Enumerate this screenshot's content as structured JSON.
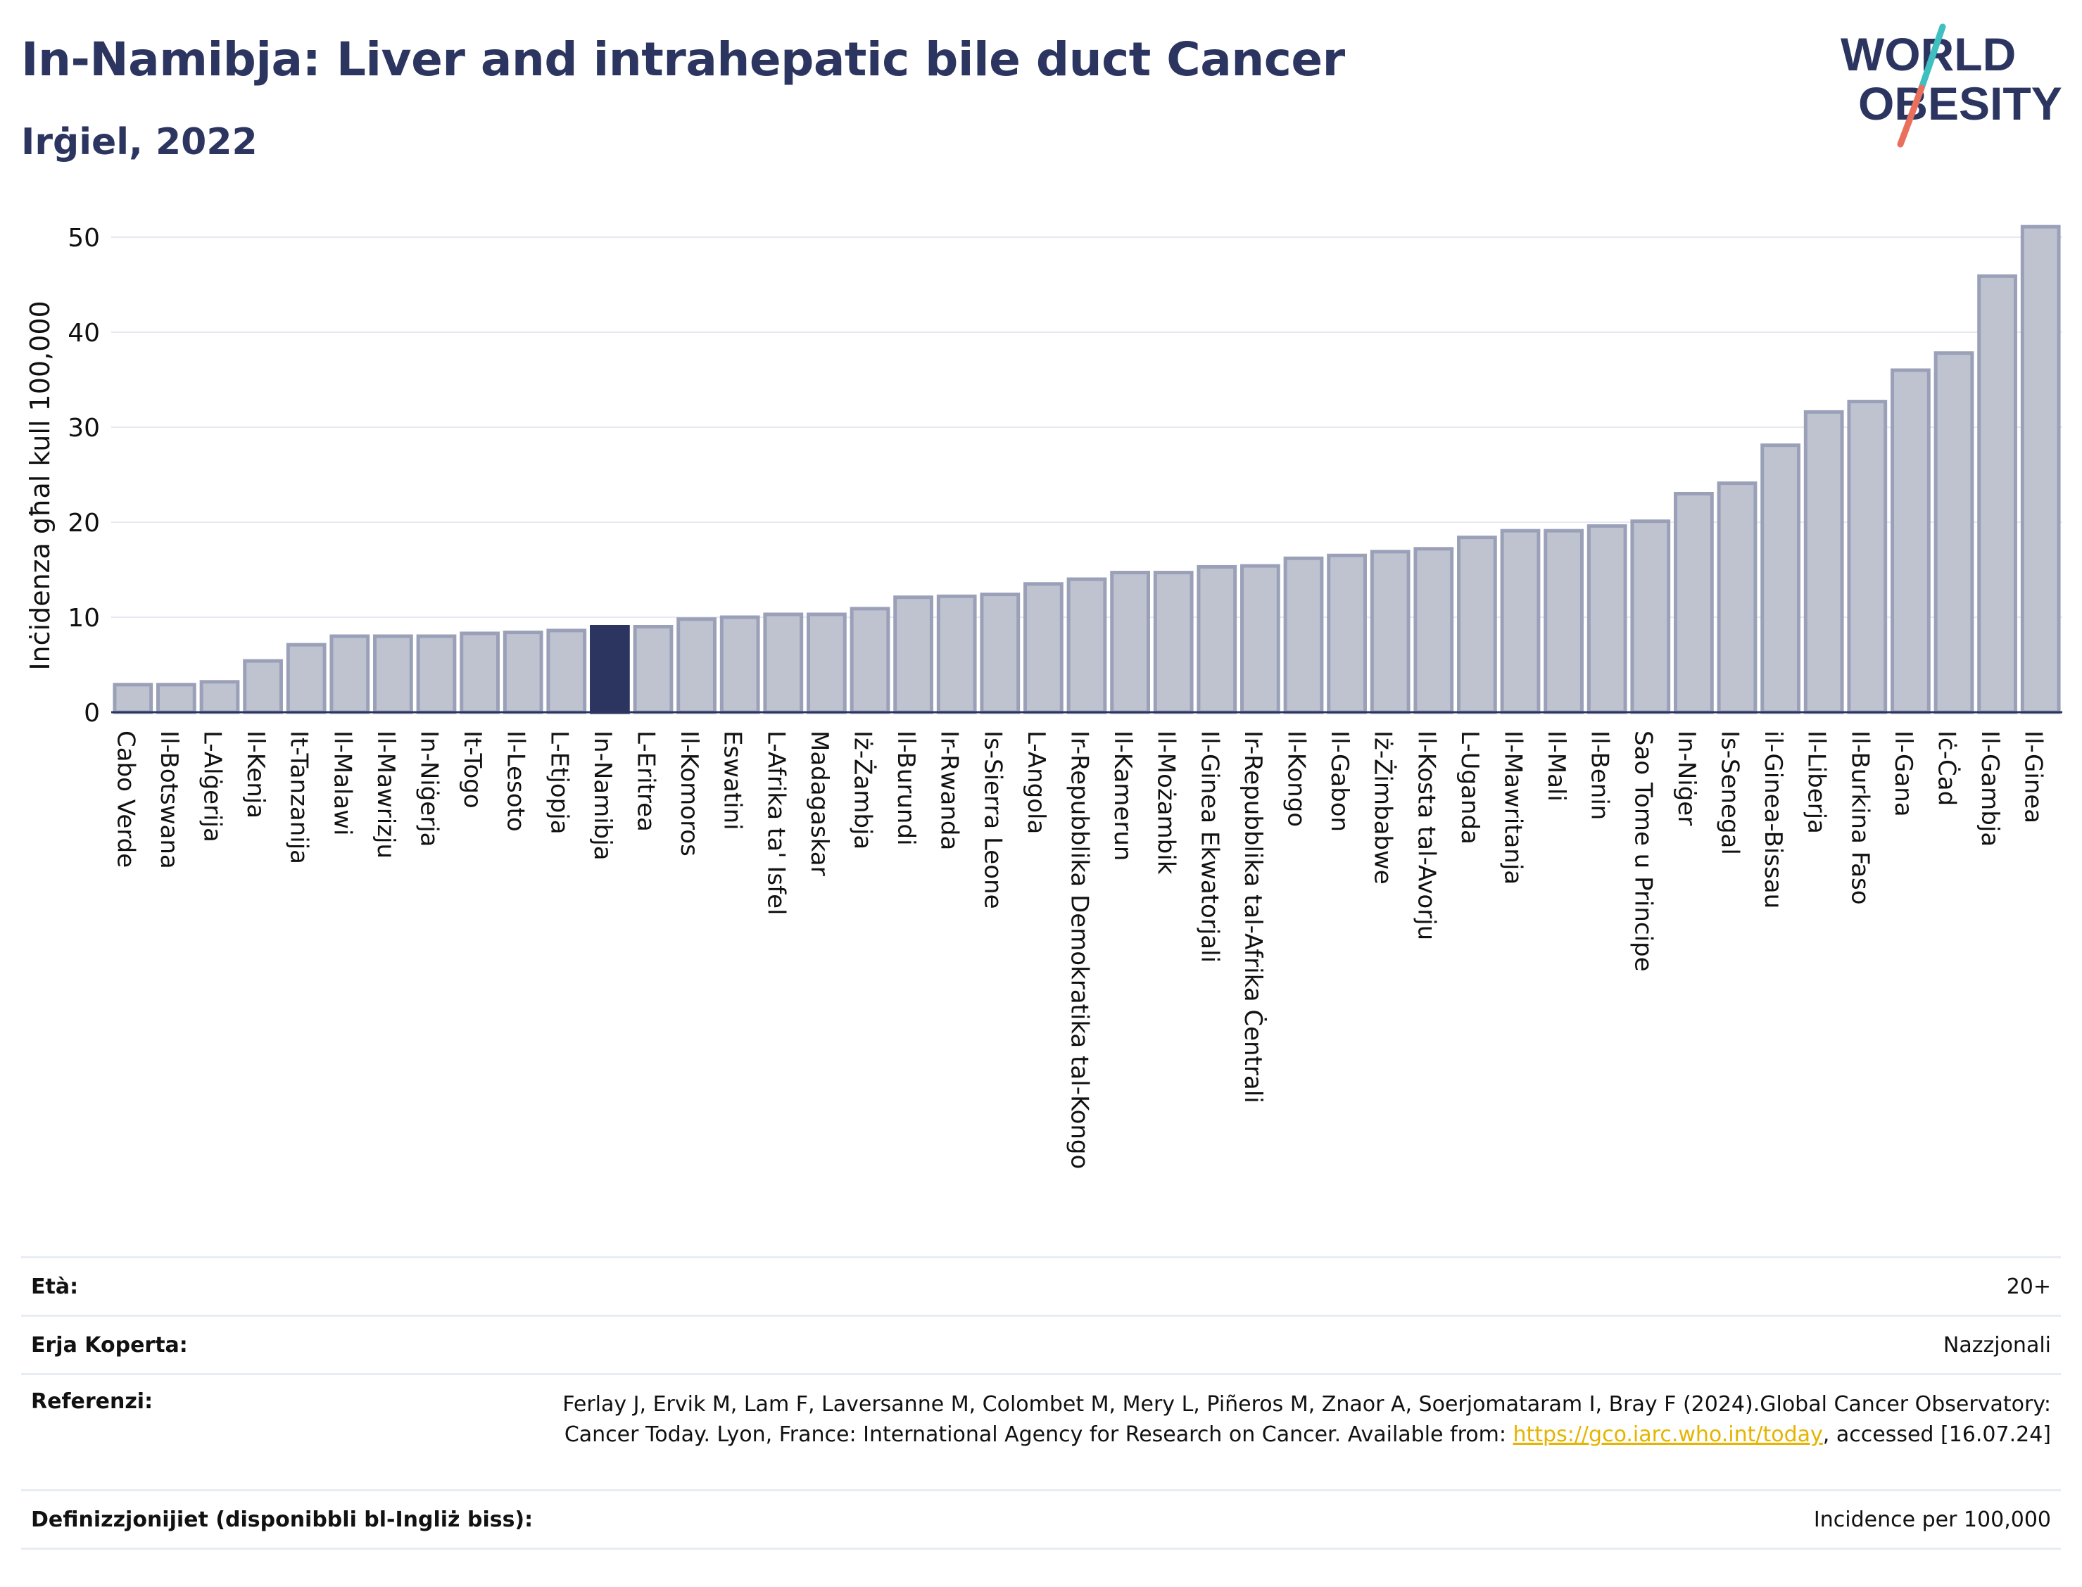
{
  "header": {
    "title": "In-Namibja: Liver and intrahepatic bile duct Cancer",
    "subtitle": "Irġiel, 2022"
  },
  "logo": {
    "line1": "WORLD",
    "line2": "OBESITY"
  },
  "colors": {
    "bar": "#bfc3d0",
    "bar_border": "#9aa0b8",
    "highlight": "#2b3560",
    "text_dark": "#2b3560",
    "logo_teal": "#3fbfbf",
    "logo_coral": "#e8705c",
    "link": "#e5b400"
  },
  "chart_data": {
    "type": "bar",
    "title": "In-Namibja: Liver and intrahepatic bile duct Cancer",
    "subtitle": "Irġiel, 2022",
    "xlabel": "",
    "ylabel": "Inċidenza għal kull 100,000",
    "ylim": [
      0,
      52
    ],
    "yticks": [
      0,
      10,
      20,
      30,
      40,
      50
    ],
    "grid": true,
    "highlight": "In-Namibja",
    "categories": [
      "Cabo Verde",
      "Il-Botswana",
      "L-Alġerija",
      "Il-Kenja",
      "It-Tanzanija",
      "Il-Malawi",
      "Il-Mawrizju",
      "In-Niġerja",
      "It-Togo",
      "Il-Lesoto",
      "L-Etjopja",
      "In-Namibja",
      "L-Eritrea",
      "Il-Komoros",
      "Eswatini",
      "L-Afrika ta' Isfel",
      "Madagaskar",
      "Iż-Żambja",
      "Il-Burundi",
      "Ir-Rwanda",
      "Is-Sierra Leone",
      "L-Angola",
      "Ir-Repubblika Demokratika tal-Kongo",
      "Il-Kamerun",
      "Il-Możambik",
      "Il-Ginea Ekwatorjali",
      "Ir-Repubblika tal-Afrika Ċentrali",
      "Il-Kongo",
      "Il-Gabon",
      "Iż-Żimbabwe",
      "Il-Kosta tal-Avorju",
      "L-Uganda",
      "Il-Mawritanja",
      "Il-Mali",
      "Il-Benin",
      "Sao Tome u Principe",
      "In-Niġer",
      "Is-Senegal",
      "il-Ginea-Bissau",
      "Il-Liberja",
      "Il-Burkina Faso",
      "Il-Gana",
      "Iċ-Ċad",
      "Il-Gambja",
      "Il-Ginea"
    ],
    "values": [
      2.9,
      2.9,
      3.2,
      5.4,
      7.1,
      8.0,
      8.0,
      8.0,
      8.3,
      8.4,
      8.6,
      9.0,
      9.0,
      9.8,
      10.0,
      10.3,
      10.3,
      10.9,
      12.1,
      12.2,
      12.4,
      13.5,
      14.0,
      14.7,
      14.7,
      15.3,
      15.4,
      16.2,
      16.5,
      16.9,
      17.2,
      18.4,
      19.1,
      19.1,
      19.6,
      20.1,
      23.0,
      24.1,
      28.1,
      31.6,
      32.7,
      36.0,
      37.8,
      45.9,
      51.1
    ]
  },
  "footer": {
    "age_label": "Età:",
    "age_value": "20+",
    "coverage_label": "Erja Koperta:",
    "coverage_value": "Nazzjonali",
    "references_label": "Referenzi:",
    "references_text1": "Ferlay J, Ervik M, Lam F, Laversanne M, Colombet M, Mery L, Piñeros M, Znaor A, Soerjomataram I, Bray F (2024).Global Cancer Observatory: Cancer Today. Lyon, France: International Agency for Research on Cancer. Available from: ",
    "references_link": "https://gco.iarc.who.int/today",
    "references_text2": ", accessed [16.07.24]",
    "definitions_label": "Definizzjonijiet (disponibbli bl-Ingliż biss):",
    "definitions_value": "Incidence per 100,000"
  }
}
